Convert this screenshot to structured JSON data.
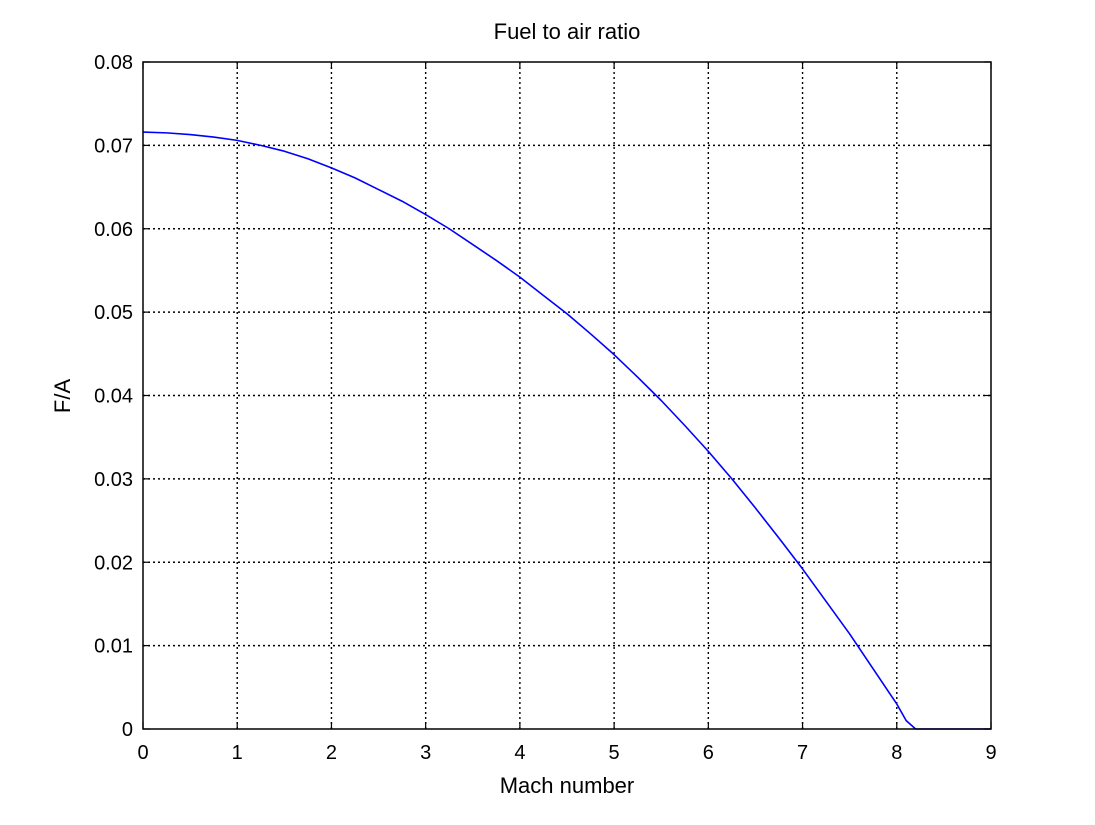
{
  "chart_data": {
    "type": "line",
    "title": "Fuel to air ratio",
    "xlabel": "Mach number",
    "ylabel": "F/A",
    "xlim": [
      0,
      9
    ],
    "ylim": [
      0,
      0.08
    ],
    "grid": true,
    "x_ticks": [
      0,
      1,
      2,
      3,
      4,
      5,
      6,
      7,
      8,
      9
    ],
    "x_tick_labels": [
      "0",
      "1",
      "2",
      "3",
      "4",
      "5",
      "6",
      "7",
      "8",
      "9"
    ],
    "y_ticks": [
      0,
      0.01,
      0.02,
      0.03,
      0.04,
      0.05,
      0.06,
      0.07,
      0.08
    ],
    "y_tick_labels": [
      "0",
      "0.01",
      "0.02",
      "0.03",
      "0.04",
      "0.05",
      "0.06",
      "0.07",
      "0.08"
    ],
    "series": [
      {
        "color": "#0000ff",
        "x": [
          0,
          0.25,
          0.5,
          0.75,
          1,
          1.25,
          1.5,
          1.75,
          2,
          2.25,
          2.5,
          2.75,
          3,
          3.25,
          3.5,
          3.75,
          4,
          4.25,
          4.5,
          4.75,
          5,
          5.25,
          5.5,
          5.75,
          6,
          6.25,
          6.5,
          6.75,
          7,
          7.25,
          7.5,
          7.75,
          8,
          8.1,
          8.2,
          8.5,
          9
        ],
        "y": [
          0.0716,
          0.0715,
          0.0713,
          0.071,
          0.0706,
          0.07,
          0.0693,
          0.0684,
          0.0673,
          0.0661,
          0.0647,
          0.0633,
          0.0617,
          0.06,
          0.0581,
          0.0562,
          0.0542,
          0.052,
          0.0498,
          0.0474,
          0.0449,
          0.0422,
          0.0394,
          0.0364,
          0.0333,
          0.03,
          0.0265,
          0.0229,
          0.0192,
          0.0153,
          0.0114,
          0.0072,
          0.003,
          0.001,
          0,
          0,
          0
        ]
      }
    ]
  }
}
